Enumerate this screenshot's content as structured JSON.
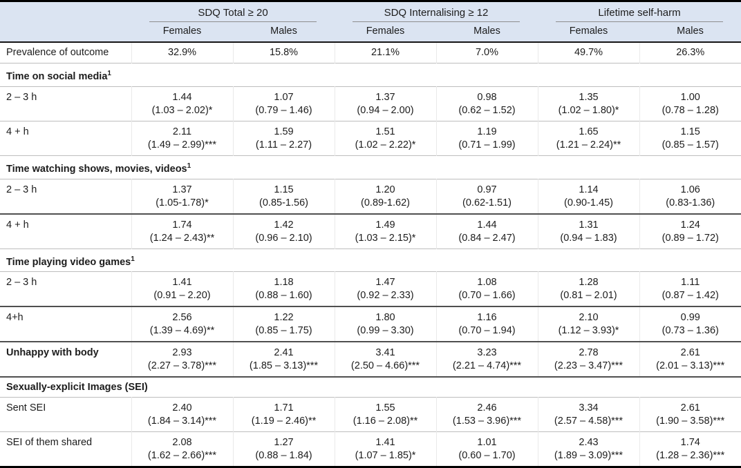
{
  "table": {
    "groups": [
      {
        "title": "SDQ Total ≥ 20",
        "cols": [
          "Females",
          "Males"
        ]
      },
      {
        "title": "SDQ Internalising ≥ 12",
        "cols": [
          "Females",
          "Males"
        ]
      },
      {
        "title": "Lifetime self-harm",
        "cols": [
          "Females",
          "Males"
        ]
      }
    ],
    "colors": {
      "header_bg": "#dbe4f2",
      "rule_light": "#bdbdbd",
      "rule_dark": "#4f4f4f",
      "frame_border": "#000000",
      "text": "#1c1c1c"
    },
    "rows": [
      {
        "type": "data",
        "single": true,
        "label": "Prevalence of outcome",
        "border": "light",
        "cells": [
          "32.9%",
          "15.8%",
          "21.1%",
          "7.0%",
          "49.7%",
          "26.3%"
        ]
      },
      {
        "type": "section",
        "label": "Time on social media",
        "sup": "1",
        "border": "light"
      },
      {
        "type": "data",
        "label": "2 – 3 h",
        "border": "light",
        "cells": [
          [
            "1.44",
            "(1.03 – 2.02)*"
          ],
          [
            "1.07",
            "(0.79 – 1.46)"
          ],
          [
            "1.37",
            "(0.94 – 2.00)"
          ],
          [
            "0.98",
            "(0.62 – 1.52)"
          ],
          [
            "1.35",
            "(1.02 – 1.80)*"
          ],
          [
            "1.00",
            "(0.78 – 1.28)"
          ]
        ]
      },
      {
        "type": "data",
        "label": "4 + h",
        "border": "light",
        "cells": [
          [
            "2.11",
            "(1.49 – 2.99)***"
          ],
          [
            "1.59",
            "(1.11 – 2.27)"
          ],
          [
            "1.51",
            "(1.02 – 2.22)*"
          ],
          [
            "1.19",
            "(0.71 – 1.99)"
          ],
          [
            "1.65",
            "(1.21 – 2.24)**"
          ],
          [
            "1.15",
            "(0.85 – 1.57)"
          ]
        ]
      },
      {
        "type": "section",
        "label": "Time watching shows, movies, videos",
        "sup": "1",
        "border": "light"
      },
      {
        "type": "data",
        "label": "2 – 3 h",
        "border": "dark",
        "cells": [
          [
            "1.37",
            "(1.05-1.78)*"
          ],
          [
            "1.15",
            "(0.85-1.56)"
          ],
          [
            "1.20",
            "(0.89-1.62)"
          ],
          [
            "0.97",
            "(0.62-1.51)"
          ],
          [
            "1.14",
            "(0.90-1.45)"
          ],
          [
            "1.06",
            "(0.83-1.36)"
          ]
        ]
      },
      {
        "type": "data",
        "label": "4 + h",
        "border": "light",
        "cells": [
          [
            "1.74",
            "(1.24 – 2.43)**"
          ],
          [
            "1.42",
            "(0.96 – 2.10)"
          ],
          [
            "1.49",
            "(1.03 – 2.15)*"
          ],
          [
            "1.44",
            "(0.84 – 2.47)"
          ],
          [
            "1.31",
            "(0.94 – 1.83)"
          ],
          [
            "1.24",
            "(0.89 – 1.72)"
          ]
        ]
      },
      {
        "type": "section",
        "label": "Time playing video games",
        "sup": "1",
        "border": "light"
      },
      {
        "type": "data",
        "label": "2 – 3 h",
        "border": "dark",
        "cells": [
          [
            "1.41",
            "(0.91 – 2.20)"
          ],
          [
            "1.18",
            "(0.88 – 1.60)"
          ],
          [
            "1.47",
            "(0.92 – 2.33)"
          ],
          [
            "1.08",
            "(0.70 – 1.66)"
          ],
          [
            "1.28",
            "(0.81 – 2.01)"
          ],
          [
            "1.11",
            "(0.87 – 1.42)"
          ]
        ]
      },
      {
        "type": "data",
        "label": "4+h",
        "border": "dark",
        "cells": [
          [
            "2.56",
            "(1.39 – 4.69)**"
          ],
          [
            "1.22",
            "(0.85 – 1.75)"
          ],
          [
            "1.80",
            "(0.99 – 3.30)"
          ],
          [
            "1.16",
            "(0.70 – 1.94)"
          ],
          [
            "2.10",
            "(1.12 – 3.93)*"
          ],
          [
            "0.99",
            "(0.73 – 1.36)"
          ]
        ]
      },
      {
        "type": "data",
        "label": "Unhappy with body",
        "bold": true,
        "border": "dark",
        "cells": [
          [
            "2.93",
            "(2.27 – 3.78)***"
          ],
          [
            "2.41",
            "(1.85 – 3.13)***"
          ],
          [
            "3.41",
            "(2.50 – 4.66)***"
          ],
          [
            "3.23",
            "(2.21 – 4.74)***"
          ],
          [
            "2.78",
            "(2.23 – 3.47)***"
          ],
          [
            "2.61",
            "(2.01 – 3.13)***"
          ]
        ]
      },
      {
        "type": "section",
        "label": "Sexually-explicit Images (SEI)",
        "border": "light"
      },
      {
        "type": "data",
        "label": "Sent SEI",
        "border": "light",
        "cells": [
          [
            "2.40",
            "(1.84 – 3.14)***"
          ],
          [
            "1.71",
            "(1.19 – 2.46)**"
          ],
          [
            "1.55",
            "(1.16 – 2.08)**"
          ],
          [
            "2.46",
            "(1.53 – 3.96)***"
          ],
          [
            "3.34",
            "(2.57 – 4.58)***"
          ],
          [
            "2.61",
            "(1.90 – 3.58)***"
          ]
        ]
      },
      {
        "type": "data",
        "label": "SEI of them shared",
        "border": "none",
        "cells": [
          [
            "2.08",
            "(1.62 – 2.66)***"
          ],
          [
            "1.27",
            "(0.88 – 1.84)"
          ],
          [
            "1.41",
            "(1.07 – 1.85)*"
          ],
          [
            "1.01",
            "(0.60 – 1.70)"
          ],
          [
            "2.43",
            "(1.89 – 3.09)***"
          ],
          [
            "1.74",
            "(1.28 – 2.36)***"
          ]
        ]
      }
    ]
  }
}
